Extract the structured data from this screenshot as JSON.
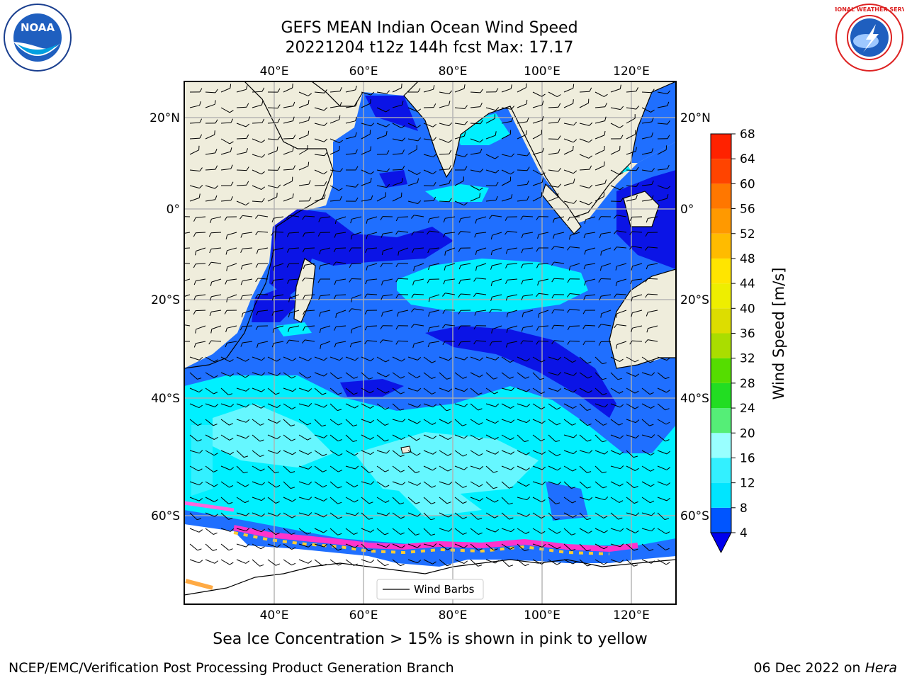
{
  "header": {
    "title_line1": "GEFS MEAN Indian Ocean Wind Speed",
    "title_line2": "20221204 t12z 144h fcst   Max: 17.17"
  },
  "logos": {
    "noaa_text": "NOAA",
    "nws_text": "NATIONAL WEATHER SERVICE"
  },
  "map": {
    "lon_labels": [
      "40°E",
      "60°E",
      "80°E",
      "100°E",
      "120°E"
    ],
    "lat_labels": [
      "20°N",
      "0°",
      "20°S",
      "40°S",
      "60°S"
    ],
    "legend_label": "Wind Barbs"
  },
  "colorbar": {
    "label": "Wind Speed [m/s]",
    "ticks": [
      "4",
      "8",
      "12",
      "16",
      "20",
      "24",
      "28",
      "32",
      "36",
      "40",
      "44",
      "48",
      "52",
      "56",
      "60",
      "64",
      "68"
    ],
    "colors": [
      "#0055ff",
      "#00e5ff",
      "#33f0ff",
      "#99ffff",
      "#55ee77",
      "#22dd22",
      "#55dd00",
      "#aadd00",
      "#dddd00",
      "#eeee00",
      "#ffe500",
      "#ffbb00",
      "#ff9900",
      "#ff7700",
      "#ff4400",
      "#ff2200"
    ],
    "extend_color": "#0000ee"
  },
  "notes": {
    "sea_ice": "Sea Ice Concentration > 15% is shown in pink to yellow"
  },
  "footer": {
    "left": "NCEP/EMC/Verification Post Processing Product Generation Branch",
    "right_date": "06 Dec 2022 on ",
    "right_host": "Hera"
  }
}
